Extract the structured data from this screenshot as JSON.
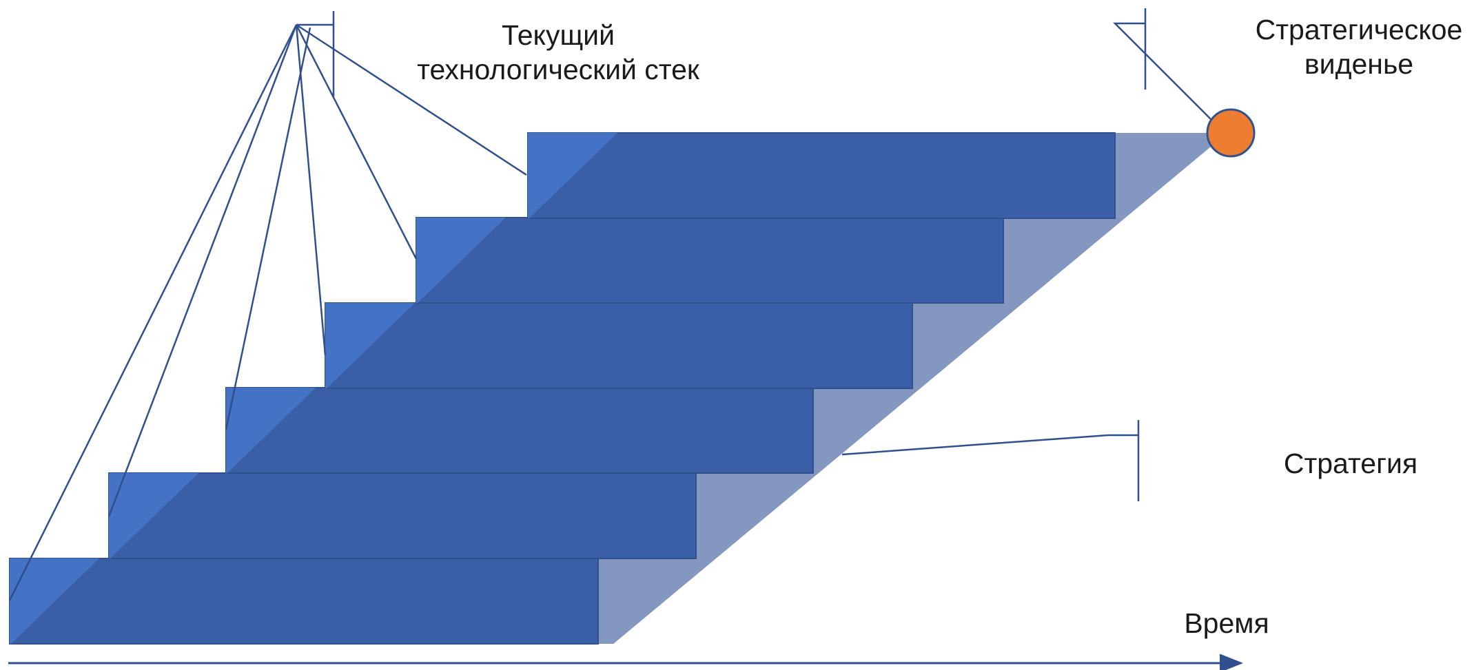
{
  "diagram": {
    "current_stack_label": "Текущий технологический стек",
    "current_stack_lines": [
      "Текущий",
      "технологический стек"
    ],
    "vision_label": "Стратегическое виденье",
    "vision_lines": [
      "Стратегическое",
      "виденье"
    ],
    "strategy_label": "Стратегия",
    "time_label": "Время",
    "steps_count": 6
  },
  "colors": {
    "step_fill": "#3a5fa6",
    "step_front": "#4472c4",
    "step_shadow": "#8497c0",
    "line": "#2f4f8f",
    "goal_dot": "#ed7d31",
    "goal_stroke": "#2f528f",
    "text": "#1a1a1a"
  }
}
